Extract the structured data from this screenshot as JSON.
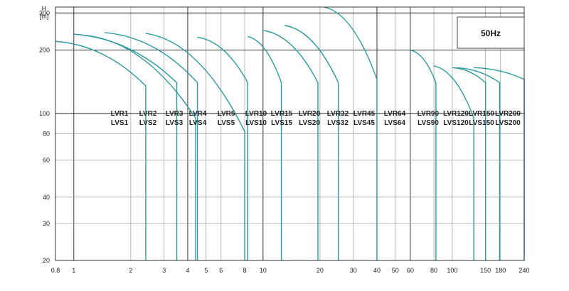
{
  "chart_data": {
    "type": "line",
    "xlabel": "",
    "ylabel": "H",
    "yunit": "[m]",
    "x_scale": "log",
    "y_scale": "log",
    "xlim": [
      0.8,
      240
    ],
    "ylim": [
      20,
      320
    ],
    "xticks": [
      0.8,
      1,
      2,
      3,
      4,
      5,
      6,
      8,
      10,
      20,
      30,
      40,
      50,
      60,
      80,
      100,
      150,
      180,
      240
    ],
    "yticks": [
      20,
      30,
      40,
      60,
      80,
      100,
      200,
      300
    ],
    "frequency_label": "50Hz",
    "curve_color": "#2a9aa0",
    "series": [
      {
        "name_top": "LVR1",
        "name_bottom": "LVS1",
        "q_start": 0.8,
        "h_start": 220,
        "q_end": 2.4,
        "h_end": 135
      },
      {
        "name_top": "LVR2",
        "name_bottom": "LVS2",
        "q_start": 1.0,
        "h_start": 238,
        "q_end": 3.5,
        "h_end": 140
      },
      {
        "name_top": "LVR3",
        "name_bottom": "LVS3",
        "q_start": 1.15,
        "h_start": 235,
        "q_end": 4.4,
        "h_end": 95
      },
      {
        "name_top": "LVR4",
        "name_bottom": "LVS4",
        "q_start": 1.45,
        "h_start": 242,
        "q_end": 4.5,
        "h_end": 140
      },
      {
        "name_top": "LVR5",
        "name_bottom": "LVS5",
        "q_start": 2.4,
        "h_start": 240,
        "q_end": 8.0,
        "h_end": 82
      },
      {
        "name_top": "LVR10",
        "name_bottom": "LVS10",
        "q_start": 4.5,
        "h_start": 230,
        "q_end": 8.3,
        "h_end": 140
      },
      {
        "name_top": "LVR15",
        "name_bottom": "LVS15",
        "q_start": 8.3,
        "h_start": 232,
        "q_end": 12.5,
        "h_end": 140
      },
      {
        "name_top": "LVR20",
        "name_bottom": "LVS20",
        "q_start": 10.0,
        "h_start": 248,
        "q_end": 19.5,
        "h_end": 140
      },
      {
        "name_top": "LVR32",
        "name_bottom": "LVS32",
        "q_start": 13.0,
        "h_start": 262,
        "q_end": 25.0,
        "h_end": 140
      },
      {
        "name_top": "LVR45",
        "name_bottom": "LVS45",
        "q_start": 21.0,
        "h_start": 320,
        "q_end": 40.0,
        "h_end": 145
      },
      {
        "name_top": "LVR64",
        "name_bottom": "LVS64",
        "q_start": 60.0,
        "h_start": 200,
        "q_end": 82.0,
        "h_end": 140
      },
      {
        "name_top": "LVR90",
        "name_bottom": "LVS90",
        "q_start": 80.0,
        "h_start": 168,
        "q_end": 130.0,
        "h_end": 95
      },
      {
        "name_top": "LVR120",
        "name_bottom": "LVS120",
        "q_start": 100.0,
        "h_start": 165,
        "q_end": 150.0,
        "h_end": 140
      },
      {
        "name_top": "LVR150",
        "name_bottom": "LVS150",
        "q_start": 105.0,
        "h_start": 165,
        "q_end": 178.0,
        "h_end": 140
      },
      {
        "name_top": "LVR200",
        "name_bottom": "LVS200",
        "q_start": 130.0,
        "h_start": 165,
        "q_end": 240.0,
        "h_end": 145
      }
    ]
  }
}
